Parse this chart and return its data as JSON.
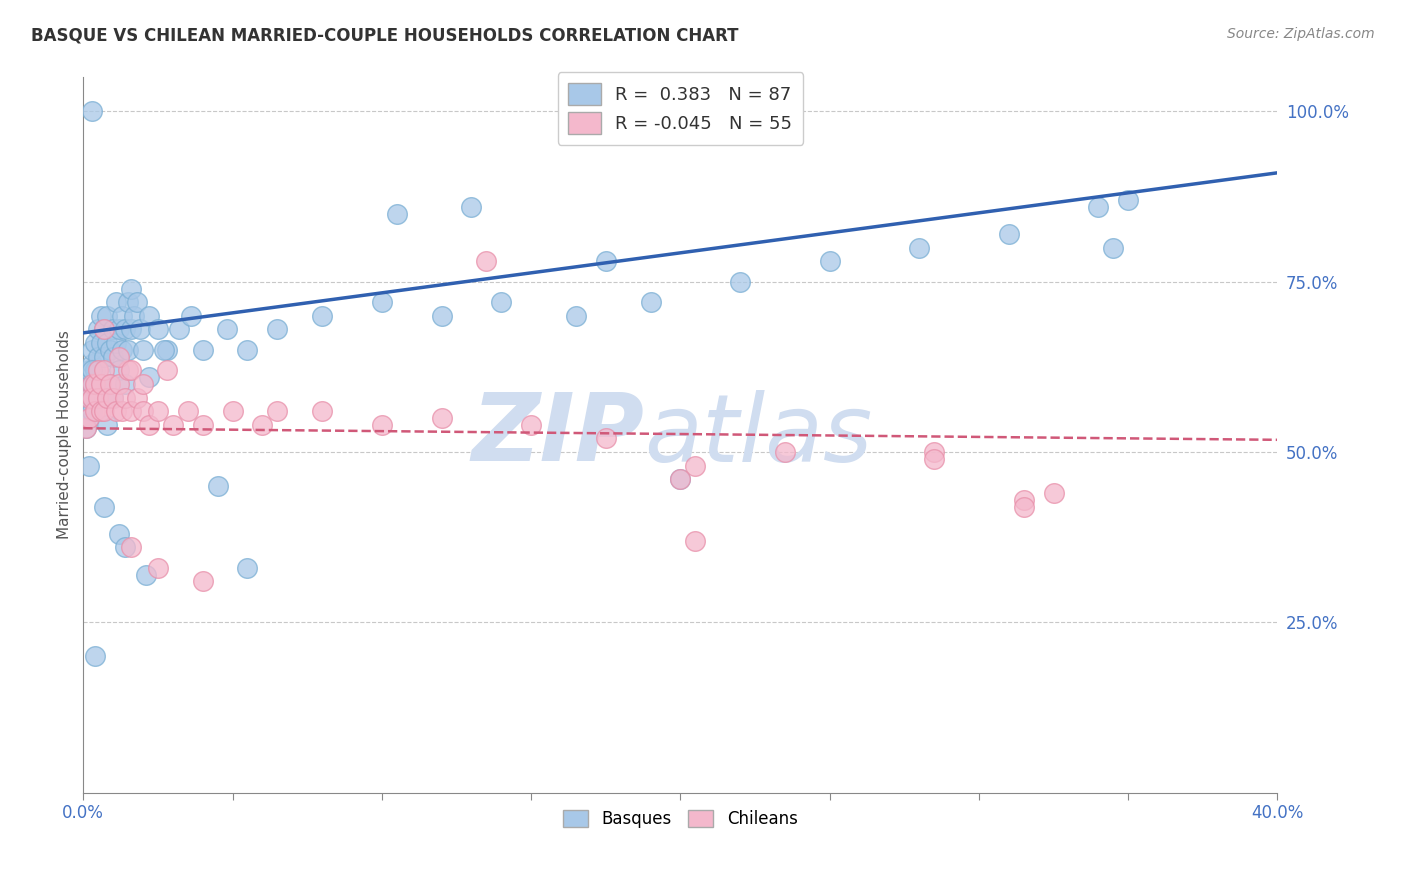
{
  "title": "BASQUE VS CHILEAN MARRIED-COUPLE HOUSEHOLDS CORRELATION CHART",
  "source": "Source: ZipAtlas.com",
  "ylabel": "Married-couple Households",
  "yticks_labels": [
    "100.0%",
    "75.0%",
    "50.0%",
    "25.0%"
  ],
  "ytick_vals": [
    1.0,
    0.75,
    0.5,
    0.25
  ],
  "basque_color": "#a8c8e8",
  "basque_edge_color": "#7bafd4",
  "chilean_color": "#f4b8cc",
  "chilean_edge_color": "#e890aa",
  "basque_line_color": "#3060b0",
  "chilean_line_color": "#d05878",
  "watermark_color": "#d0ddf0",
  "background_color": "#ffffff",
  "grid_color": "#c8c8c8",
  "xmin": 0.0,
  "xmax": 0.4,
  "ymin": 0.0,
  "ymax": 1.05,
  "basque_x": [
    0.001,
    0.001,
    0.001,
    0.002,
    0.002,
    0.002,
    0.002,
    0.003,
    0.003,
    0.003,
    0.003,
    0.003,
    0.004,
    0.004,
    0.004,
    0.005,
    0.005,
    0.005,
    0.005,
    0.006,
    0.006,
    0.006,
    0.007,
    0.007,
    0.007,
    0.008,
    0.008,
    0.009,
    0.009,
    0.01,
    0.01,
    0.01,
    0.011,
    0.011,
    0.012,
    0.012,
    0.013,
    0.013,
    0.014,
    0.014,
    0.015,
    0.015,
    0.016,
    0.016,
    0.017,
    0.018,
    0.019,
    0.02,
    0.022,
    0.025,
    0.028,
    0.032,
    0.036,
    0.04,
    0.048,
    0.055,
    0.065,
    0.08,
    0.1,
    0.12,
    0.14,
    0.165,
    0.19,
    0.22,
    0.25,
    0.28,
    0.31,
    0.34,
    0.003,
    0.021,
    0.175,
    0.345,
    0.004,
    0.007,
    0.055,
    0.105,
    0.2,
    0.012,
    0.027,
    0.003,
    0.045,
    0.002,
    0.008,
    0.13,
    0.35,
    0.014,
    0.022
  ],
  "basque_y": [
    0.535,
    0.55,
    0.57,
    0.6,
    0.62,
    0.55,
    0.58,
    0.63,
    0.6,
    0.65,
    0.58,
    0.56,
    0.62,
    0.66,
    0.6,
    0.64,
    0.68,
    0.58,
    0.62,
    0.66,
    0.6,
    0.7,
    0.64,
    0.68,
    0.58,
    0.66,
    0.7,
    0.65,
    0.6,
    0.64,
    0.68,
    0.58,
    0.66,
    0.72,
    0.68,
    0.62,
    0.65,
    0.7,
    0.68,
    0.6,
    0.72,
    0.65,
    0.68,
    0.74,
    0.7,
    0.72,
    0.68,
    0.65,
    0.7,
    0.68,
    0.65,
    0.68,
    0.7,
    0.65,
    0.68,
    0.65,
    0.68,
    0.7,
    0.72,
    0.7,
    0.72,
    0.7,
    0.72,
    0.75,
    0.78,
    0.8,
    0.82,
    0.86,
    1.0,
    0.32,
    0.78,
    0.8,
    0.2,
    0.42,
    0.33,
    0.85,
    0.46,
    0.38,
    0.65,
    0.62,
    0.45,
    0.48,
    0.54,
    0.86,
    0.87,
    0.36,
    0.61
  ],
  "chilean_x": [
    0.001,
    0.002,
    0.002,
    0.003,
    0.003,
    0.004,
    0.004,
    0.005,
    0.005,
    0.006,
    0.006,
    0.007,
    0.007,
    0.008,
    0.009,
    0.01,
    0.011,
    0.012,
    0.013,
    0.014,
    0.015,
    0.016,
    0.018,
    0.02,
    0.022,
    0.025,
    0.03,
    0.035,
    0.04,
    0.05,
    0.06,
    0.08,
    0.1,
    0.12,
    0.15,
    0.175,
    0.205,
    0.235,
    0.285,
    0.315,
    0.007,
    0.012,
    0.016,
    0.02,
    0.028,
    0.065,
    0.135,
    0.2,
    0.285,
    0.315,
    0.016,
    0.025,
    0.04,
    0.205,
    0.325
  ],
  "chilean_y": [
    0.535,
    0.55,
    0.58,
    0.6,
    0.58,
    0.56,
    0.6,
    0.58,
    0.62,
    0.6,
    0.56,
    0.62,
    0.56,
    0.58,
    0.6,
    0.58,
    0.56,
    0.6,
    0.56,
    0.58,
    0.62,
    0.56,
    0.58,
    0.56,
    0.54,
    0.56,
    0.54,
    0.56,
    0.54,
    0.56,
    0.54,
    0.56,
    0.54,
    0.55,
    0.54,
    0.52,
    0.48,
    0.5,
    0.5,
    0.43,
    0.68,
    0.64,
    0.62,
    0.6,
    0.62,
    0.56,
    0.78,
    0.46,
    0.49,
    0.42,
    0.36,
    0.33,
    0.31,
    0.37,
    0.44
  ],
  "basque_line_x": [
    0.0,
    0.4
  ],
  "basque_line_y": [
    0.675,
    0.91
  ],
  "chilean_line_x": [
    0.0,
    0.4
  ],
  "chilean_line_y": [
    0.535,
    0.518
  ],
  "xtick_positions": [
    0.0,
    0.05,
    0.1,
    0.15,
    0.2,
    0.25,
    0.3,
    0.35,
    0.4
  ],
  "xtick_show_labels": [
    true,
    false,
    false,
    false,
    false,
    false,
    false,
    false,
    true
  ]
}
